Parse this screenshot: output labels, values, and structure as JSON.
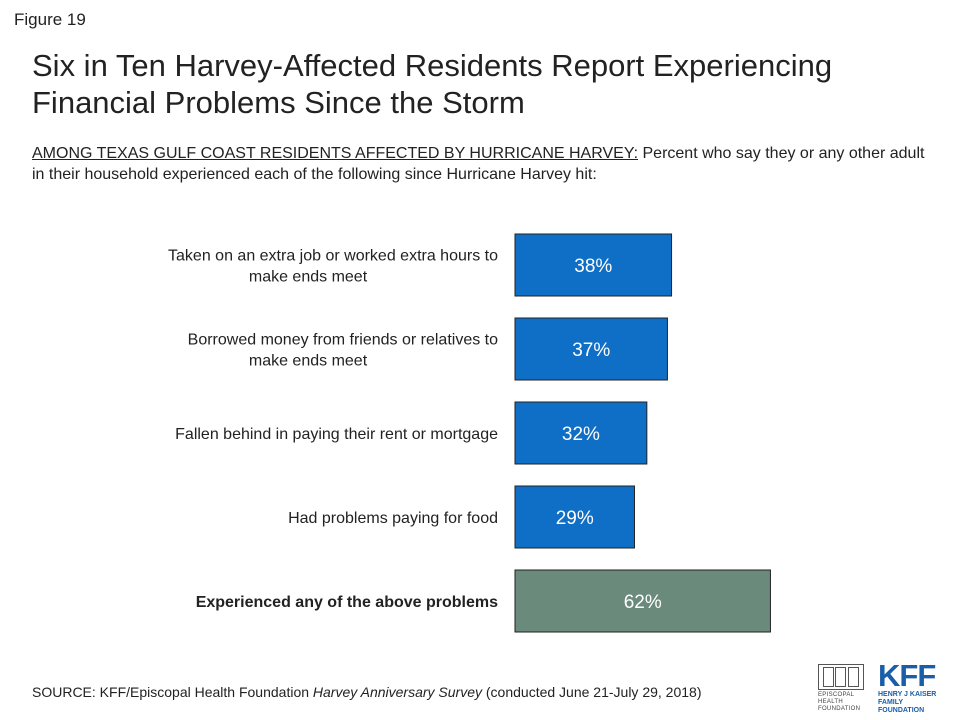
{
  "figure_label": "Figure 19",
  "title": "Six in Ten Harvey-Affected Residents Report Experiencing Financial Problems Since the Storm",
  "subtitle_lead": "AMONG TEXAS GULF COAST RESIDENTS AFFECTED BY HURRICANE HARVEY:",
  "subtitle_rest": " Percent who say they or any other adult in their household experienced each of the following since Hurricane Harvey hit:",
  "colors": {
    "bar": "#0f6ec6",
    "bar_total": "#6a8a7c",
    "bar_border": "#222222",
    "value_text": "#ffffff"
  },
  "chart_data": {
    "type": "bar",
    "orientation": "horizontal",
    "categories": [
      "Taken on an extra job or worked extra hours to make ends meet",
      "Borrowed money from friends or relatives to make ends meet",
      "Fallen behind in paying their rent or mortgage",
      "Had problems paying for food",
      "Experienced any of the above problems"
    ],
    "values": [
      38,
      37,
      32,
      29,
      62
    ],
    "value_labels": [
      "38%",
      "37%",
      "32%",
      "29%",
      "62%"
    ],
    "highlight_index": 4,
    "xlim": [
      0,
      100
    ]
  },
  "source": {
    "prefix": "SOURCE: KFF/Episcopal Health Foundation ",
    "survey": "Harvey Anniversary Survey",
    "suffix": " (conducted June 21-July 29, 2018)"
  },
  "logos": {
    "ehf_text": "EPISCOPAL HEALTH FOUNDATION",
    "kff_mark": "KFF",
    "kff_text": "HENRY J KAISER FAMILY FOUNDATION"
  }
}
